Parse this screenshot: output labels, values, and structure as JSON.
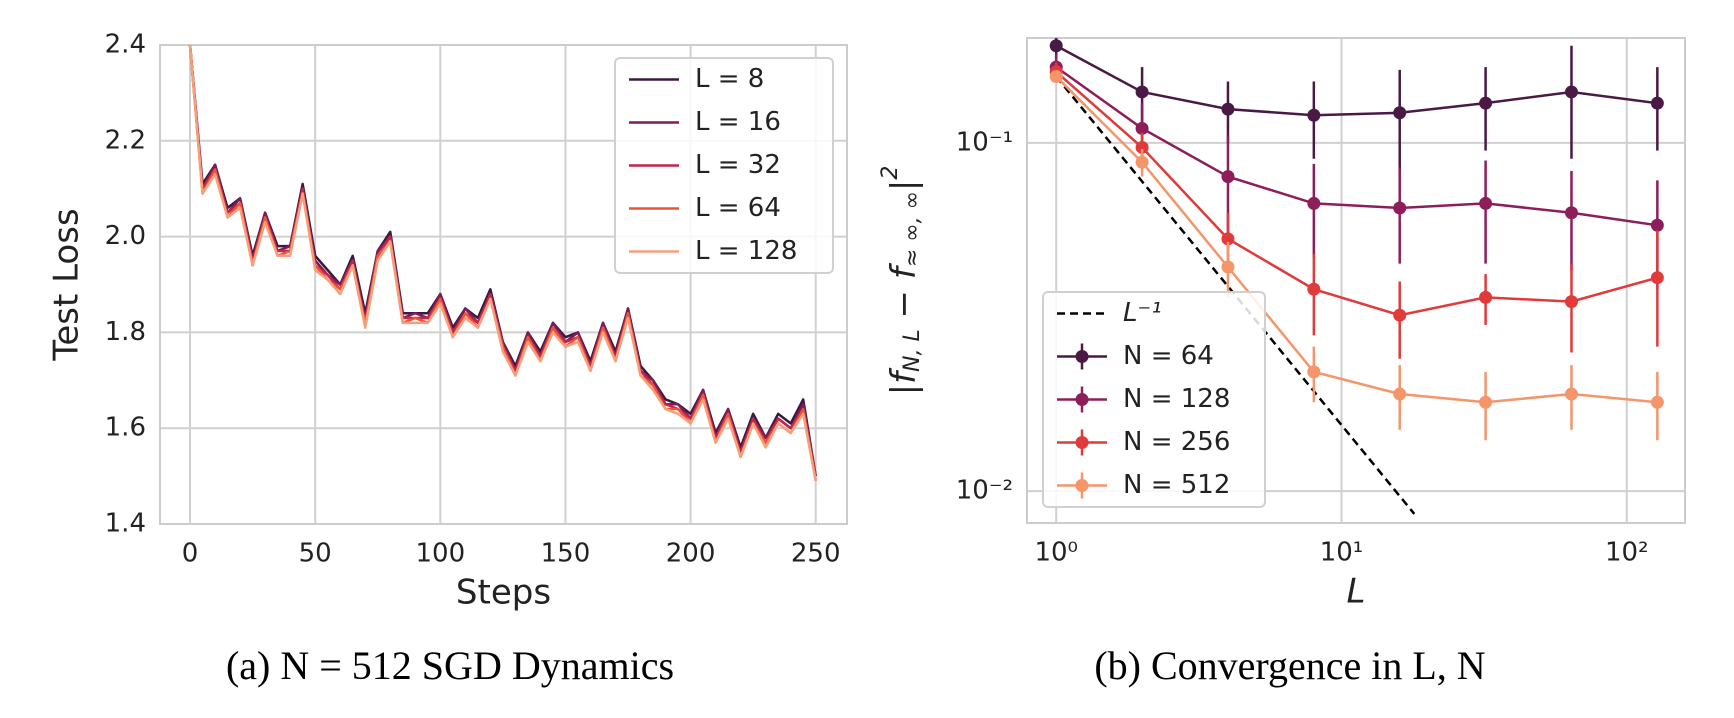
{
  "chart_data": [
    {
      "type": "line",
      "caption": "(a) N = 512 SGD Dynamics",
      "xlabel": "Steps",
      "ylabel": "Test Loss",
      "x": [
        0,
        5,
        10,
        15,
        20,
        25,
        30,
        35,
        40,
        45,
        50,
        55,
        60,
        65,
        70,
        75,
        80,
        85,
        90,
        95,
        100,
        105,
        110,
        115,
        120,
        125,
        130,
        135,
        140,
        145,
        150,
        155,
        160,
        165,
        170,
        175,
        180,
        185,
        190,
        195,
        200,
        205,
        210,
        215,
        220,
        225,
        230,
        235,
        240,
        245,
        250
      ],
      "xlim": [
        -12,
        262.5
      ],
      "ylim": [
        1.4,
        2.4
      ],
      "xticks": [
        0,
        50,
        100,
        150,
        200,
        250
      ],
      "yticks": [
        1.4,
        1.6,
        1.8,
        {
          "value": 2,
          "label": "2.0"
        },
        2.2,
        2.4
      ],
      "grid": true,
      "legend": "upper right",
      "series": [
        {
          "name": "L = 8",
          "color": "#3b1a40",
          "values": [
            2.4,
            2.11,
            2.15,
            2.06,
            2.08,
            1.96,
            2.05,
            1.98,
            1.98,
            2.11,
            1.96,
            1.93,
            1.9,
            1.96,
            1.84,
            1.97,
            2.01,
            1.84,
            1.84,
            1.84,
            1.88,
            1.81,
            1.85,
            1.83,
            1.89,
            1.78,
            1.73,
            1.8,
            1.76,
            1.82,
            1.79,
            1.8,
            1.74,
            1.82,
            1.76,
            1.85,
            1.73,
            1.7,
            1.66,
            1.65,
            1.63,
            1.68,
            1.59,
            1.64,
            1.56,
            1.63,
            1.58,
            1.63,
            1.61,
            1.66,
            1.5
          ]
        },
        {
          "name": "L = 16",
          "color": "#7a1d5a",
          "values": [
            2.4,
            2.1,
            2.15,
            2.05,
            2.08,
            1.95,
            2.05,
            1.97,
            1.98,
            2.1,
            1.95,
            1.92,
            1.9,
            1.95,
            1.83,
            1.97,
            2.0,
            1.83,
            1.84,
            1.83,
            1.88,
            1.8,
            1.85,
            1.82,
            1.88,
            1.78,
            1.72,
            1.8,
            1.75,
            1.82,
            1.78,
            1.8,
            1.73,
            1.82,
            1.75,
            1.85,
            1.72,
            1.7,
            1.65,
            1.65,
            1.62,
            1.68,
            1.58,
            1.64,
            1.55,
            1.62,
            1.58,
            1.62,
            1.6,
            1.65,
            1.5
          ]
        },
        {
          "name": "L = 32",
          "color": "#c4244a",
          "values": [
            2.4,
            2.1,
            2.14,
            2.05,
            2.07,
            1.95,
            2.04,
            1.97,
            1.97,
            2.1,
            1.94,
            1.92,
            1.89,
            1.95,
            1.82,
            1.96,
            2.0,
            1.83,
            1.83,
            1.83,
            1.87,
            1.8,
            1.84,
            1.82,
            1.88,
            1.77,
            1.72,
            1.79,
            1.75,
            1.81,
            1.78,
            1.79,
            1.73,
            1.81,
            1.75,
            1.84,
            1.72,
            1.69,
            1.65,
            1.64,
            1.62,
            1.67,
            1.58,
            1.63,
            1.55,
            1.62,
            1.57,
            1.62,
            1.6,
            1.64,
            1.5
          ]
        },
        {
          "name": "L = 64",
          "color": "#ec5438",
          "values": [
            2.4,
            2.09,
            2.14,
            2.04,
            2.07,
            1.94,
            2.04,
            1.96,
            1.97,
            2.09,
            1.94,
            1.91,
            1.89,
            1.94,
            1.82,
            1.96,
            1.99,
            1.82,
            1.83,
            1.82,
            1.87,
            1.79,
            1.84,
            1.81,
            1.87,
            1.77,
            1.71,
            1.79,
            1.74,
            1.81,
            1.77,
            1.79,
            1.72,
            1.81,
            1.74,
            1.84,
            1.71,
            1.69,
            1.64,
            1.64,
            1.61,
            1.67,
            1.57,
            1.63,
            1.54,
            1.61,
            1.57,
            1.61,
            1.59,
            1.64,
            1.49
          ]
        },
        {
          "name": "L = 128",
          "color": "#f5a07a",
          "values": [
            2.4,
            2.09,
            2.13,
            2.04,
            2.06,
            1.94,
            2.03,
            1.96,
            1.96,
            2.09,
            1.93,
            1.91,
            1.88,
            1.94,
            1.81,
            1.95,
            1.99,
            1.82,
            1.82,
            1.82,
            1.86,
            1.79,
            1.83,
            1.81,
            1.87,
            1.76,
            1.71,
            1.78,
            1.74,
            1.8,
            1.77,
            1.78,
            1.72,
            1.8,
            1.74,
            1.83,
            1.71,
            1.68,
            1.64,
            1.63,
            1.61,
            1.66,
            1.57,
            1.62,
            1.54,
            1.61,
            1.56,
            1.61,
            1.59,
            1.63,
            1.49
          ]
        }
      ]
    },
    {
      "type": "errorbar",
      "caption": "(b) Convergence in L, N",
      "xlabel": "L",
      "ylabel": [
        {
          "text": "|f"
        },
        {
          "sub": "N, L"
        },
        {
          "text": " − f"
        },
        {
          "sub": "≈ ∞, ∞"
        },
        {
          "text": "|"
        },
        {
          "sup": "2"
        }
      ],
      "x": [
        1,
        2,
        4,
        8,
        16,
        32,
        64,
        128
      ],
      "xscale": "log",
      "yscale": "log",
      "xlim": [
        0.79,
        160
      ],
      "ylim": [
        0.0081,
        0.2
      ],
      "xticks": [
        {
          "value": 1,
          "label": "10⁰"
        },
        {
          "value": 10,
          "label": "10¹"
        },
        {
          "value": 100,
          "label": "10²"
        }
      ],
      "yticks": [
        {
          "value": 0.01,
          "label": "10⁻²"
        },
        {
          "value": 0.1,
          "label": "10⁻¹"
        }
      ],
      "grid": true,
      "legend": "lower left",
      "reference": {
        "name": "L⁻¹",
        "color": "#000000",
        "x": [
          1,
          18
        ],
        "values": [
          0.155,
          0.0086
        ]
      },
      "series": [
        {
          "name": "N = 64",
          "color": "#4a1a45",
          "values": [
            0.19,
            0.14,
            0.125,
            0.12,
            0.122,
            0.13,
            0.14,
            0.13
          ],
          "errors": [
            0.02,
            0.025,
            0.025,
            0.03,
            0.04,
            0.035,
            0.05,
            0.035
          ]
        },
        {
          "name": "N = 128",
          "color": "#8e1e5b",
          "values": [
            0.165,
            0.11,
            0.08,
            0.067,
            0.065,
            0.067,
            0.063,
            0.058
          ],
          "errors": [
            0.015,
            0.02,
            0.025,
            0.02,
            0.02,
            0.022,
            0.02,
            0.02
          ]
        },
        {
          "name": "N = 256",
          "color": "#e03a3a",
          "values": [
            0.16,
            0.097,
            0.053,
            0.038,
            0.032,
            0.036,
            0.035,
            0.041
          ],
          "errors": [
            0.01,
            0.01,
            0.01,
            0.01,
            0.008,
            0.006,
            0.01,
            0.015
          ]
        },
        {
          "name": "N = 512",
          "color": "#f4956a",
          "values": [
            0.155,
            0.088,
            0.044,
            0.022,
            0.019,
            0.018,
            0.019,
            0.018
          ],
          "errors": [
            0.005,
            0.008,
            0.008,
            0.004,
            0.004,
            0.004,
            0.004,
            0.004
          ]
        }
      ]
    }
  ]
}
